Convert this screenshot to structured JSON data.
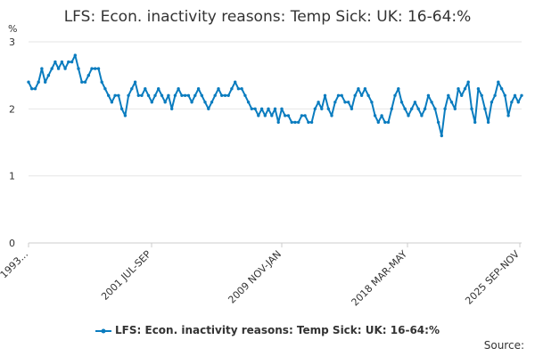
{
  "chart_data": {
    "type": "line",
    "title": "LFS: Econ. inactivity reasons: Temp Sick: UK: 16-64:%",
    "ylabel": "%",
    "ylim": [
      0,
      3
    ],
    "yticks": [
      0,
      1,
      2,
      3
    ],
    "xtick_labels": [
      "1993...",
      "2001 JUL-SEP",
      "2009 NOV-JAN",
      "2018 MAR-MAY",
      "2025 SEP-NOV"
    ],
    "grid": "horizontal",
    "legend_position": "bottom",
    "series": [
      {
        "name": "LFS: Econ. inactivity reasons: Temp Sick: UK: 16-64:%",
        "color": "#0a7cbf",
        "values": [
          2.4,
          2.3,
          2.3,
          2.4,
          2.6,
          2.4,
          2.5,
          2.6,
          2.7,
          2.6,
          2.7,
          2.6,
          2.7,
          2.7,
          2.8,
          2.6,
          2.4,
          2.4,
          2.5,
          2.6,
          2.6,
          2.6,
          2.4,
          2.3,
          2.2,
          2.1,
          2.2,
          2.2,
          2.0,
          1.9,
          2.2,
          2.3,
          2.4,
          2.2,
          2.2,
          2.3,
          2.2,
          2.1,
          2.2,
          2.3,
          2.2,
          2.1,
          2.2,
          2.0,
          2.2,
          2.3,
          2.2,
          2.2,
          2.2,
          2.1,
          2.2,
          2.3,
          2.2,
          2.1,
          2.0,
          2.1,
          2.2,
          2.3,
          2.2,
          2.2,
          2.2,
          2.3,
          2.4,
          2.3,
          2.3,
          2.2,
          2.1,
          2.0,
          2.0,
          1.9,
          2.0,
          1.9,
          2.0,
          1.9,
          2.0,
          1.8,
          2.0,
          1.9,
          1.9,
          1.8,
          1.8,
          1.8,
          1.9,
          1.9,
          1.8,
          1.8,
          2.0,
          2.1,
          2.0,
          2.2,
          2.0,
          1.9,
          2.1,
          2.2,
          2.2,
          2.1,
          2.1,
          2.0,
          2.2,
          2.3,
          2.2,
          2.3,
          2.2,
          2.1,
          1.9,
          1.8,
          1.9,
          1.8,
          1.8,
          2.0,
          2.2,
          2.3,
          2.1,
          2.0,
          1.9,
          2.0,
          2.1,
          2.0,
          1.9,
          2.0,
          2.2,
          2.1,
          2.0,
          1.8,
          1.6,
          2.0,
          2.2,
          2.1,
          2.0,
          2.3,
          2.2,
          2.3,
          2.4,
          2.0,
          1.8,
          2.3,
          2.2,
          2.0,
          1.8,
          2.1,
          2.2,
          2.4,
          2.3,
          2.2,
          1.9,
          2.1,
          2.2,
          2.1,
          2.2
        ]
      }
    ]
  },
  "source_label": "Source:"
}
